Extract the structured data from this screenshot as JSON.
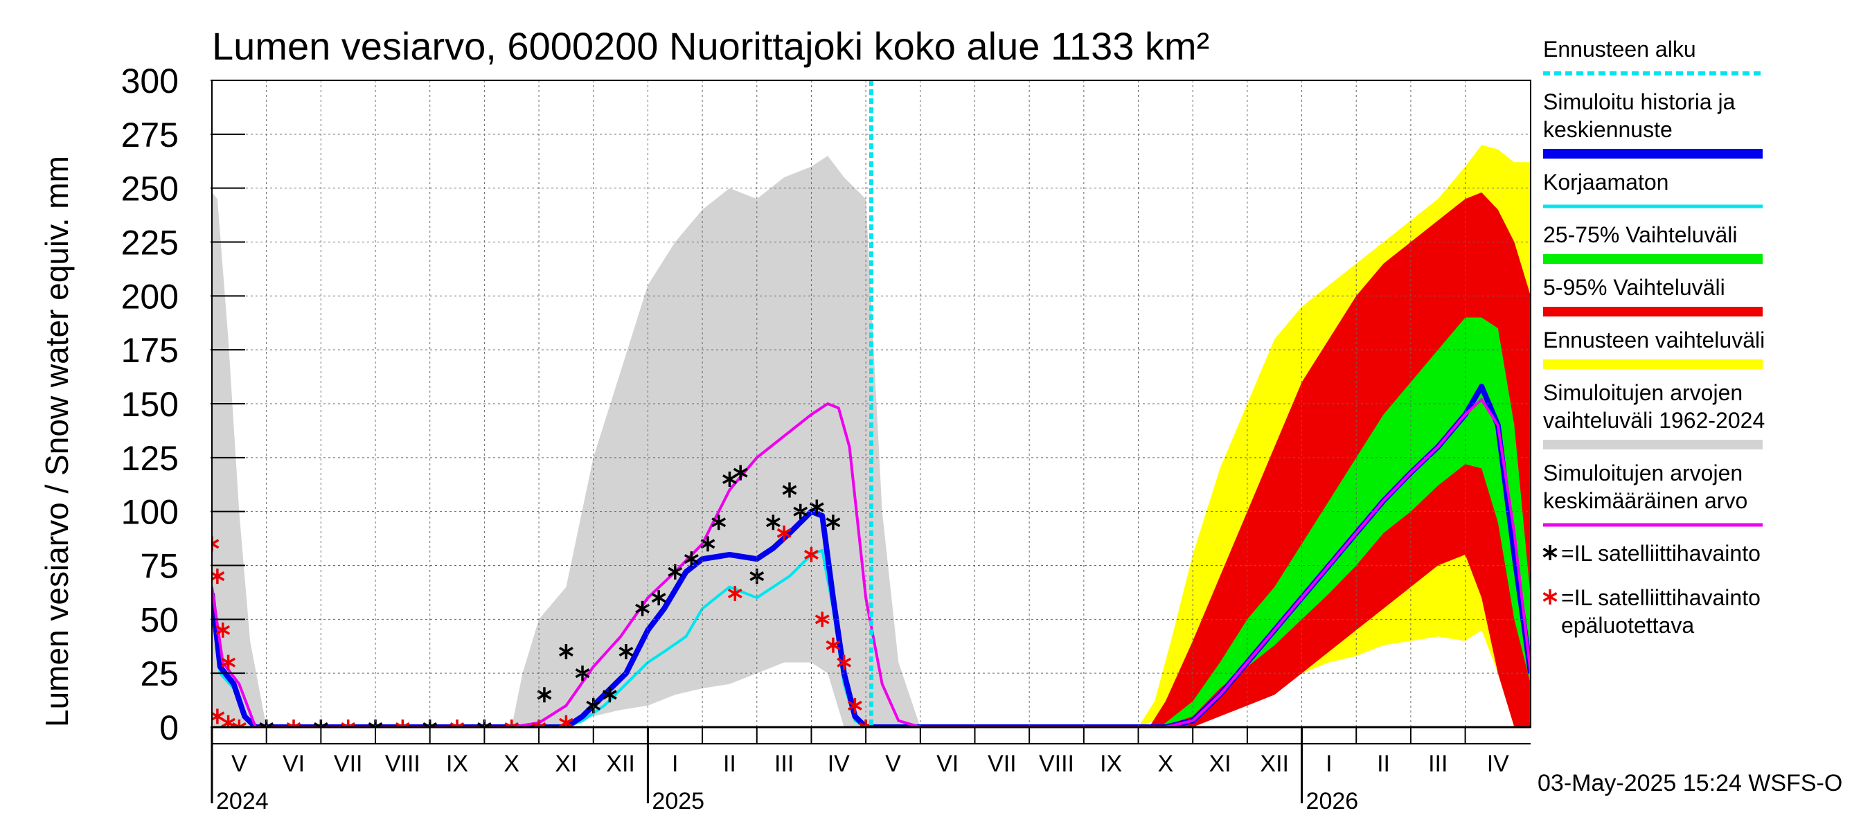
{
  "chart_data": {
    "type": "area",
    "title": "Lumen vesiarvo, 6000200 Nuorittajoki koko alue 1133 km²",
    "ylabel": "Lumen vesiarvo / Snow water equiv.    mm",
    "ylim": [
      0,
      300
    ],
    "yticks": [
      0,
      25,
      50,
      75,
      100,
      125,
      150,
      175,
      200,
      225,
      250,
      275,
      300
    ],
    "xlim": [
      0,
      24.2
    ],
    "months": [
      {
        "label": "V",
        "start": 0
      },
      {
        "label": "VI",
        "start": 1
      },
      {
        "label": "VII",
        "start": 2
      },
      {
        "label": "VIII",
        "start": 3
      },
      {
        "label": "IX",
        "start": 4
      },
      {
        "label": "X",
        "start": 5
      },
      {
        "label": "XI",
        "start": 6
      },
      {
        "label": "XII",
        "start": 7
      },
      {
        "label": "I",
        "start": 8
      },
      {
        "label": "II",
        "start": 9
      },
      {
        "label": "III",
        "start": 10
      },
      {
        "label": "IV",
        "start": 11
      },
      {
        "label": "V",
        "start": 12
      },
      {
        "label": "VI",
        "start": 13
      },
      {
        "label": "VII",
        "start": 14
      },
      {
        "label": "VIII",
        "start": 15
      },
      {
        "label": "IX",
        "start": 16
      },
      {
        "label": "X",
        "start": 17
      },
      {
        "label": "XI",
        "start": 18
      },
      {
        "label": "XII",
        "start": 19
      },
      {
        "label": "I",
        "start": 20
      },
      {
        "label": "II",
        "start": 21
      },
      {
        "label": "III",
        "start": 22
      },
      {
        "label": "IV",
        "start": 23
      }
    ],
    "years": [
      {
        "label": "2024",
        "pos": 0
      },
      {
        "label": "2025",
        "pos": 8
      },
      {
        "label": "2026",
        "pos": 20
      }
    ],
    "forecast_start": 12.1,
    "timestamp": "03-May-2025 15:24 WSFS-O",
    "legend": [
      {
        "label": "Ennusteen alku",
        "color": "#00e5ee",
        "style": "dotted"
      },
      {
        "label": "Simuloitu historia ja keskiennuste",
        "color": "#0000ee",
        "style": "thick"
      },
      {
        "label": "Korjaamaton",
        "color": "#00e5ee",
        "style": "line"
      },
      {
        "label": "25-75% Vaihteluväli",
        "color": "#00ee00",
        "style": "thick"
      },
      {
        "label": "5-95% Vaihteluväli",
        "color": "#ee0000",
        "style": "thick"
      },
      {
        "label": "Ennusteen vaihteluväli",
        "color": "#ffff00",
        "style": "thick"
      },
      {
        "label": "Simuloitujen arvojen vaihteluväli 1962-2024",
        "color": "#d3d3d3",
        "style": "thick"
      },
      {
        "label": "Simuloitujen arvojen keskimääräinen arvo",
        "color": "#ee00ee",
        "style": "line"
      },
      {
        "label": "=IL satelliittihavainto",
        "color": "#000000",
        "style": "star"
      },
      {
        "label": "=IL satelliittihavainto epäluotettava",
        "color": "#ee0000",
        "style": "star"
      }
    ],
    "series": {
      "hist_range": [
        [
          0,
          0,
          248
        ],
        [
          0.1,
          0,
          245
        ],
        [
          0.3,
          0,
          180
        ],
        [
          0.5,
          0,
          100
        ],
        [
          0.7,
          0,
          40
        ],
        [
          1.0,
          0,
          0
        ],
        [
          5.5,
          0,
          0
        ],
        [
          5.7,
          0,
          25
        ],
        [
          6.0,
          0,
          50
        ],
        [
          6.5,
          0,
          65
        ],
        [
          7.0,
          5,
          125
        ],
        [
          7.5,
          8,
          165
        ],
        [
          8.0,
          10,
          205
        ],
        [
          8.5,
          15,
          225
        ],
        [
          9.0,
          18,
          240
        ],
        [
          9.5,
          20,
          250
        ],
        [
          10.0,
          25,
          245
        ],
        [
          10.5,
          30,
          255
        ],
        [
          11.0,
          30,
          260
        ],
        [
          11.3,
          25,
          265
        ],
        [
          11.6,
          0,
          255
        ],
        [
          12.0,
          0,
          245
        ],
        [
          12.3,
          0,
          100
        ],
        [
          12.6,
          0,
          30
        ],
        [
          13.0,
          0,
          0
        ],
        [
          17.2,
          0,
          0
        ],
        [
          17.5,
          5,
          0
        ],
        [
          18.0,
          5,
          40
        ],
        [
          18.5,
          10,
          80
        ],
        [
          19.0,
          15,
          110
        ],
        [
          19.5,
          20,
          140
        ],
        [
          20.0,
          25,
          170
        ],
        [
          20.5,
          30,
          185
        ],
        [
          21.0,
          35,
          200
        ],
        [
          21.5,
          40,
          210
        ],
        [
          22.0,
          40,
          230
        ],
        [
          22.5,
          45,
          240
        ],
        [
          23.0,
          40,
          255
        ],
        [
          23.3,
          45,
          258
        ],
        [
          23.6,
          30,
          255
        ],
        [
          23.9,
          5,
          250
        ],
        [
          24.2,
          0,
          252
        ]
      ],
      "forecast_range": [
        [
          17.0,
          0,
          0
        ],
        [
          17.3,
          3,
          12
        ],
        [
          17.6,
          5,
          40
        ],
        [
          18.0,
          8,
          80
        ],
        [
          18.5,
          12,
          120
        ],
        [
          19.0,
          16,
          150
        ],
        [
          19.5,
          20,
          180
        ],
        [
          20.0,
          25,
          195
        ],
        [
          20.5,
          30,
          205
        ],
        [
          21.0,
          33,
          215
        ],
        [
          21.5,
          38,
          225
        ],
        [
          22.0,
          40,
          235
        ],
        [
          22.5,
          42,
          245
        ],
        [
          23.0,
          40,
          260
        ],
        [
          23.3,
          45,
          270
        ],
        [
          23.6,
          25,
          268
        ],
        [
          23.9,
          0,
          262
        ],
        [
          24.2,
          0,
          262
        ]
      ],
      "p5_95": [
        [
          17.2,
          0,
          0
        ],
        [
          17.5,
          0,
          12
        ],
        [
          18.0,
          0,
          40
        ],
        [
          18.5,
          5,
          70
        ],
        [
          19.0,
          10,
          100
        ],
        [
          19.5,
          15,
          130
        ],
        [
          20.0,
          25,
          160
        ],
        [
          20.5,
          35,
          180
        ],
        [
          21.0,
          45,
          200
        ],
        [
          21.5,
          55,
          215
        ],
        [
          22.0,
          65,
          225
        ],
        [
          22.5,
          75,
          235
        ],
        [
          23.0,
          80,
          245
        ],
        [
          23.3,
          60,
          248
        ],
        [
          23.6,
          25,
          240
        ],
        [
          23.9,
          0,
          225
        ],
        [
          24.2,
          0,
          200
        ]
      ],
      "p25_75": [
        [
          17.4,
          0,
          0
        ],
        [
          18.0,
          5,
          12
        ],
        [
          18.5,
          18,
          30
        ],
        [
          19.0,
          28,
          50
        ],
        [
          19.5,
          38,
          65
        ],
        [
          20.0,
          50,
          85
        ],
        [
          20.5,
          62,
          105
        ],
        [
          21.0,
          75,
          125
        ],
        [
          21.5,
          90,
          145
        ],
        [
          22.0,
          100,
          160
        ],
        [
          22.5,
          112,
          175
        ],
        [
          23.0,
          122,
          190
        ],
        [
          23.3,
          120,
          190
        ],
        [
          23.6,
          95,
          185
        ],
        [
          23.9,
          50,
          140
        ],
        [
          24.2,
          20,
          60
        ]
      ],
      "mean": [
        [
          0,
          65
        ],
        [
          0.2,
          30
        ],
        [
          0.5,
          20
        ],
        [
          0.8,
          0
        ],
        [
          5.5,
          0
        ],
        [
          6.0,
          2
        ],
        [
          6.5,
          10
        ],
        [
          7.0,
          28
        ],
        [
          7.5,
          42
        ],
        [
          8.0,
          60
        ],
        [
          8.5,
          72
        ],
        [
          9.0,
          85
        ],
        [
          9.5,
          110
        ],
        [
          10.0,
          125
        ],
        [
          10.5,
          135
        ],
        [
          11.0,
          145
        ],
        [
          11.3,
          150
        ],
        [
          11.5,
          148
        ],
        [
          11.7,
          130
        ],
        [
          12.0,
          60
        ],
        [
          12.3,
          20
        ],
        [
          12.6,
          3
        ],
        [
          13.0,
          0
        ],
        [
          17.5,
          0
        ],
        [
          18.0,
          3
        ],
        [
          18.5,
          15
        ],
        [
          19.0,
          30
        ],
        [
          19.5,
          45
        ],
        [
          20.0,
          60
        ],
        [
          20.5,
          75
        ],
        [
          21.0,
          90
        ],
        [
          21.5,
          105
        ],
        [
          22.0,
          118
        ],
        [
          22.5,
          130
        ],
        [
          23.0,
          145
        ],
        [
          23.3,
          152
        ],
        [
          23.6,
          140
        ],
        [
          23.9,
          90
        ],
        [
          24.2,
          25
        ]
      ],
      "main": [
        [
          0,
          62
        ],
        [
          0.15,
          28
        ],
        [
          0.4,
          20
        ],
        [
          0.6,
          5
        ],
        [
          0.8,
          0
        ],
        [
          6.5,
          0
        ],
        [
          6.8,
          5
        ],
        [
          7.2,
          15
        ],
        [
          7.6,
          25
        ],
        [
          8.0,
          45
        ],
        [
          8.3,
          55
        ],
        [
          8.7,
          72
        ],
        [
          9.0,
          78
        ],
        [
          9.5,
          80
        ],
        [
          10.0,
          78
        ],
        [
          10.3,
          83
        ],
        [
          10.6,
          90
        ],
        [
          11.0,
          100
        ],
        [
          11.2,
          98
        ],
        [
          11.4,
          60
        ],
        [
          11.6,
          25
        ],
        [
          11.8,
          5
        ],
        [
          12.0,
          0
        ],
        [
          17.5,
          0
        ],
        [
          18.0,
          3
        ],
        [
          18.5,
          15
        ],
        [
          19.0,
          30
        ],
        [
          19.5,
          45
        ],
        [
          20.0,
          60
        ],
        [
          20.5,
          75
        ],
        [
          21.0,
          90
        ],
        [
          21.5,
          105
        ],
        [
          22.0,
          118
        ],
        [
          22.5,
          130
        ],
        [
          23.0,
          145
        ],
        [
          23.3,
          158
        ],
        [
          23.6,
          140
        ],
        [
          23.9,
          80
        ],
        [
          24.2,
          25
        ]
      ],
      "uncorrected": [
        [
          0,
          60
        ],
        [
          0.15,
          25
        ],
        [
          0.4,
          18
        ],
        [
          0.6,
          5
        ],
        [
          0.8,
          0
        ],
        [
          6.5,
          0
        ],
        [
          6.8,
          3
        ],
        [
          7.2,
          10
        ],
        [
          7.6,
          20
        ],
        [
          8.0,
          30
        ],
        [
          8.3,
          35
        ],
        [
          8.7,
          42
        ],
        [
          9.0,
          55
        ],
        [
          9.5,
          65
        ],
        [
          10.0,
          60
        ],
        [
          10.3,
          65
        ],
        [
          10.6,
          70
        ],
        [
          11.0,
          80
        ],
        [
          11.2,
          82
        ],
        [
          11.4,
          55
        ],
        [
          11.6,
          20
        ],
        [
          11.8,
          3
        ],
        [
          12.0,
          0
        ]
      ],
      "obs_black": [
        [
          6.1,
          15
        ],
        [
          6.5,
          35
        ],
        [
          6.8,
          25
        ],
        [
          7.0,
          10
        ],
        [
          7.3,
          15
        ],
        [
          7.6,
          35
        ],
        [
          7.9,
          55
        ],
        [
          8.2,
          60
        ],
        [
          8.5,
          72
        ],
        [
          8.8,
          78
        ],
        [
          9.1,
          85
        ],
        [
          9.3,
          95
        ],
        [
          9.5,
          115
        ],
        [
          9.7,
          118
        ],
        [
          10.0,
          70
        ],
        [
          10.3,
          95
        ],
        [
          10.6,
          110
        ],
        [
          10.8,
          100
        ],
        [
          11.1,
          102
        ],
        [
          11.4,
          95
        ],
        [
          12.0,
          0
        ],
        [
          1.0,
          0
        ],
        [
          2.0,
          0
        ],
        [
          3.0,
          0
        ],
        [
          4.0,
          0
        ],
        [
          5.0,
          0
        ]
      ],
      "obs_red": [
        [
          0,
          85
        ],
        [
          0.1,
          70
        ],
        [
          0.2,
          45
        ],
        [
          0.3,
          30
        ],
        [
          0.1,
          5
        ],
        [
          0.3,
          2
        ],
        [
          0.5,
          0
        ],
        [
          1.5,
          0
        ],
        [
          2.5,
          0
        ],
        [
          3.5,
          0
        ],
        [
          4.5,
          0
        ],
        [
          5.5,
          0
        ],
        [
          6.0,
          0
        ],
        [
          6.5,
          2
        ],
        [
          9.6,
          62
        ],
        [
          10.5,
          90
        ],
        [
          11.0,
          80
        ],
        [
          11.2,
          50
        ],
        [
          11.4,
          38
        ],
        [
          11.6,
          30
        ],
        [
          11.8,
          10
        ],
        [
          12.0,
          0
        ]
      ]
    }
  }
}
